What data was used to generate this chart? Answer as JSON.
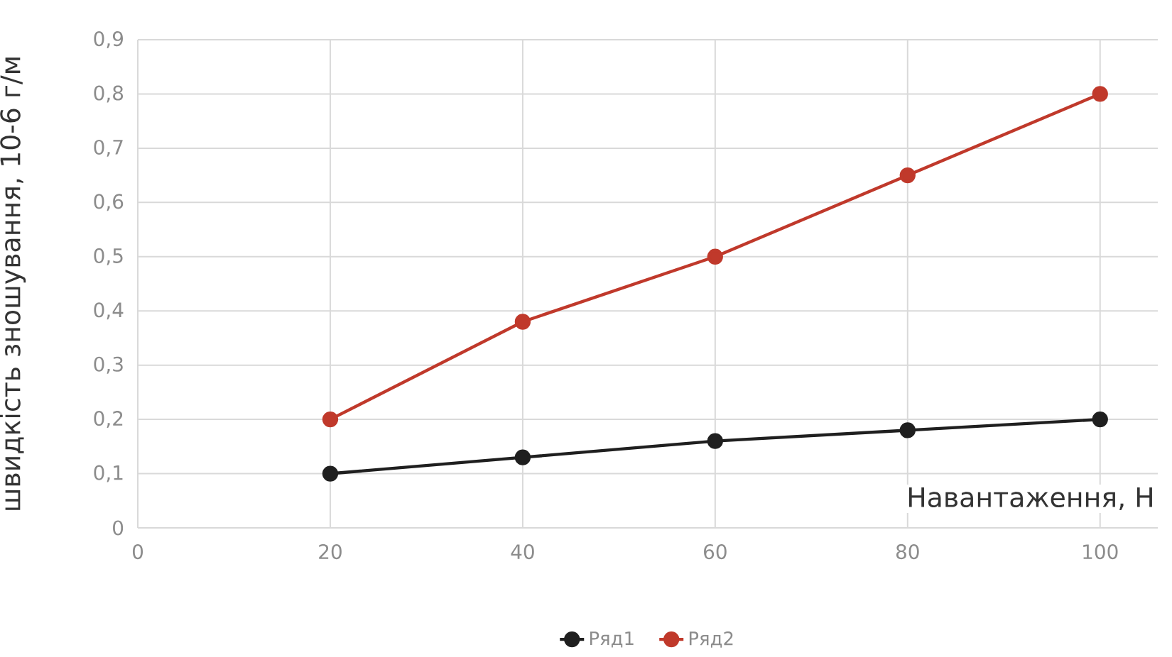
{
  "chart_data": {
    "type": "line",
    "xlabel": "Навантаження, Н",
    "ylabel": "швидкість зношування, 10-6 г/м",
    "x": [
      20,
      40,
      60,
      80,
      100
    ],
    "series": [
      {
        "name": "Ряд1",
        "color": "#1f1f1f",
        "values": [
          0.1,
          0.13,
          0.16,
          0.18,
          0.2
        ]
      },
      {
        "name": "Ряд2",
        "color": "#c0392b",
        "values": [
          0.2,
          0.38,
          0.5,
          0.65,
          0.8
        ]
      }
    ],
    "xlim": [
      0,
      106
    ],
    "ylim": [
      0,
      0.9
    ],
    "xticks": [
      0,
      20,
      40,
      60,
      80,
      100
    ],
    "yticks": [
      {
        "value": 0,
        "label": "0"
      },
      {
        "value": 0.1,
        "label": "0,1"
      },
      {
        "value": 0.2,
        "label": "0,2"
      },
      {
        "value": 0.3,
        "label": "0,3"
      },
      {
        "value": 0.4,
        "label": "0,4"
      },
      {
        "value": 0.5,
        "label": "0,5"
      },
      {
        "value": 0.6,
        "label": "0,6"
      },
      {
        "value": 0.7,
        "label": "0,7"
      },
      {
        "value": 0.8,
        "label": "0,8"
      },
      {
        "value": 0.9,
        "label": "0,9"
      }
    ],
    "grid": true,
    "legend": "bottom",
    "marker": "circle",
    "line_style": "solid"
  }
}
